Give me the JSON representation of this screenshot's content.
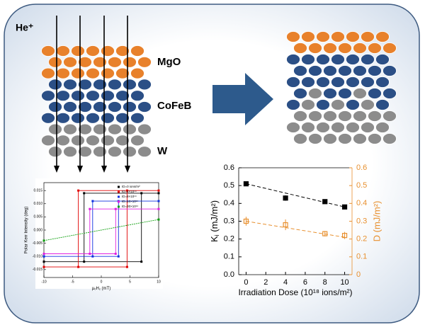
{
  "diagram": {
    "ion": "He⁺",
    "layers": [
      "MgO",
      "CoFeB",
      "W"
    ]
  },
  "chart_data": [
    {
      "type": "line",
      "ylabel": "Polar Kerr Intensity (deg)",
      "xlabel": [
        "μ",
        "0",
        "H",
        "z",
        " (mT)"
      ],
      "xlim": [
        -10,
        10
      ],
      "xticks": [
        -10,
        -5,
        0,
        5,
        10
      ],
      "ylim": [
        -0.018,
        0.018
      ],
      "yticks": [
        0.015,
        {
          "value": 0.01,
          "label": "0.010"
        },
        0.005,
        {
          "value": 0,
          "label": "0.000"
        },
        -0.005,
        {
          "value": -0.01,
          "label": "-0.010"
        },
        -0.015
      ],
      "series": [
        {
          "name": "ID=0 ions/m²",
          "color": "#000000",
          "x": [
            -10,
            7,
            7,
            10,
            -3,
            -3,
            -10
          ],
          "values": [
            -0.012,
            -0.012,
            0.014,
            0.014,
            0.014,
            -0.012,
            -0.012
          ]
        },
        {
          "name": "ID=4×10¹⁴",
          "color": "#e00000",
          "x": [
            -10,
            4.5,
            4.5,
            10,
            -4,
            -4,
            -10
          ],
          "values": [
            -0.014,
            -0.014,
            0.015,
            0.015,
            0.015,
            -0.014,
            -0.014
          ]
        },
        {
          "name": "ID=8×10¹⁴",
          "color": "#1030e0",
          "x": [
            -10,
            3,
            3,
            10,
            -1.5,
            -1.5,
            -10
          ],
          "values": [
            -0.01,
            -0.01,
            0.011,
            0.011,
            0.011,
            -0.01,
            -0.01
          ]
        },
        {
          "name": "ID=10×10¹⁴",
          "color": "#e020e0",
          "x": [
            -10,
            2.5,
            2.5,
            10,
            -2,
            -2,
            -10
          ],
          "values": [
            -0.009,
            -0.009,
            0.008,
            0.008,
            0.008,
            -0.009,
            -0.009
          ]
        },
        {
          "name": "ID=30×10¹⁴",
          "color": "#10a010",
          "x": [
            -10,
            10
          ],
          "values": [
            -0.004,
            0.004
          ]
        }
      ]
    },
    {
      "type": "errorbar",
      "xlabel": "Irradiation Dose (10¹⁸ ions/m²)",
      "ylabel": [
        "K",
        "i",
        " (mJ/m²)"
      ],
      "y2label": "D (mJ/m²)",
      "xlim": [
        -0.75,
        10.75
      ],
      "xticks": [
        0,
        2,
        4,
        6,
        8,
        10
      ],
      "ylim": [
        0,
        0.6
      ],
      "yticks": [
        {
          "value": 0,
          "label": "0.0"
        },
        0.1,
        0.2,
        0.3,
        0.4,
        0.5,
        0.6
      ],
      "y2lim": [
        0,
        0.6
      ],
      "y2ticks": [
        0,
        0.1,
        0.2,
        0.3,
        0.4,
        0.5,
        0.6
      ],
      "series": [
        {
          "color": "#000000",
          "x": [
            0,
            4,
            8,
            10
          ],
          "values": [
            0.51,
            0.43,
            0.41,
            0.38
          ],
          "errors": [
            0.01,
            0.015,
            0.008,
            0.008
          ],
          "trend": [
            0.51,
            0.38
          ]
        },
        {
          "color": "#e8902f",
          "axis": "y2",
          "x": [
            0,
            4,
            8,
            10
          ],
          "values": [
            0.3,
            0.28,
            0.23,
            0.22
          ],
          "errors": [
            0.025,
            0.03,
            0.015,
            0.02
          ],
          "trend": [
            0.3,
            0.21
          ]
        }
      ]
    }
  ]
}
